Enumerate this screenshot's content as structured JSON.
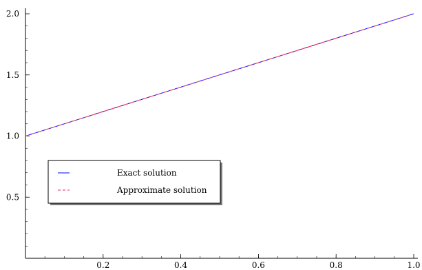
{
  "chart_data": {
    "type": "line",
    "title": "",
    "xlabel": "",
    "ylabel": "",
    "xlim": [
      0,
      1.0
    ],
    "ylim": [
      0,
      2.0
    ],
    "x_ticks": [
      0.2,
      0.4,
      0.6,
      0.8,
      1.0
    ],
    "x_tick_labels": [
      "0.2",
      "0.4",
      "0.6",
      "0.8",
      "1.0"
    ],
    "y_ticks": [
      0.5,
      1.0,
      1.5,
      2.0
    ],
    "y_tick_labels": [
      "0.5",
      "1.0",
      "1.5",
      "2.0"
    ],
    "grid": false,
    "legend_position": "lower-left",
    "series": [
      {
        "name": "Exact solution",
        "color": "#0000ff",
        "style": "solid",
        "x": [
          0,
          0.2,
          0.4,
          0.6,
          0.8,
          1.0
        ],
        "y": [
          1.0,
          1.2,
          1.4,
          1.6,
          1.8,
          2.0
        ]
      },
      {
        "name": "Approximate solution",
        "color": "#e8577a",
        "style": "dashed",
        "x": [
          0,
          0.2,
          0.4,
          0.6,
          0.8,
          1.0
        ],
        "y": [
          1.0,
          1.2,
          1.4,
          1.6,
          1.8,
          2.0
        ]
      }
    ]
  }
}
